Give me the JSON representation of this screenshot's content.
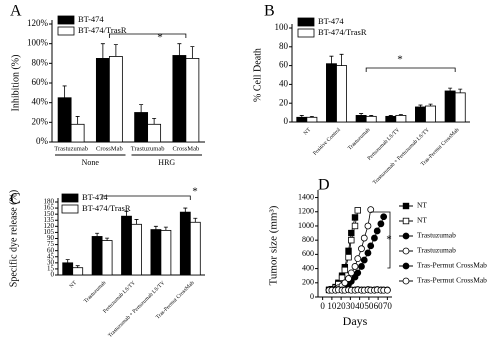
{
  "chart_data": [
    {
      "type": "bar",
      "label": "A",
      "ylabel": "Inhibition (%)",
      "categories": [
        "Trastuzumab",
        "CrossMab",
        "Trastuzumab",
        "CrossMab"
      ],
      "groups": [
        "None",
        "HRG"
      ],
      "series": [
        {
          "name": "BT-474",
          "color": "#000000",
          "values": [
            45,
            85,
            30,
            88
          ],
          "errors": [
            12,
            15,
            8,
            12
          ]
        },
        {
          "name": "BT-474/TrasR",
          "color": "#ffffff",
          "values": [
            18,
            87,
            18,
            85
          ],
          "errors": [
            8,
            12,
            6,
            12
          ]
        }
      ],
      "ylim": [
        0,
        120
      ],
      "yticks": [
        {
          "value": 0,
          "label": "0%"
        },
        {
          "value": 20,
          "label": "20%"
        },
        {
          "value": 40,
          "label": "40%"
        },
        {
          "value": 60,
          "label": "60%"
        },
        {
          "value": 80,
          "label": "80%"
        },
        {
          "value": 100,
          "label": "100%"
        },
        {
          "value": 120,
          "label": "120%"
        }
      ],
      "annotation": "*"
    },
    {
      "type": "bar",
      "label": "B",
      "ylabel": "% Cell Death",
      "categories": [
        "NT",
        "Positive Control",
        "Trastuzumab",
        "Pertuzumab LS/TY",
        "Trastuzumab + Pertuzumab LS/TY",
        "Tras-Permut CrossMab"
      ],
      "series": [
        {
          "name": "BT-474",
          "color": "#000000",
          "values": [
            5,
            62,
            7,
            6,
            16,
            33
          ],
          "errors": [
            2,
            8,
            2,
            1,
            2,
            3
          ]
        },
        {
          "name": "BT-474/TrasR",
          "color": "#ffffff",
          "values": [
            5,
            60,
            6,
            7,
            17,
            31
          ],
          "errors": [
            1,
            12,
            1,
            1,
            2,
            4
          ]
        }
      ],
      "ylim": [
        0,
        100
      ],
      "yticks": [
        0,
        20,
        40,
        60,
        80,
        100
      ],
      "annotation": "*"
    },
    {
      "type": "bar",
      "label": "C",
      "ylabel": "Specific dye release (%)",
      "categories": [
        "NT",
        "Trastuzumab",
        "Pertuzumab LS/TY",
        "Trastuzumab + Pertuzumab LS/TY",
        "Tras-Permut CrossMab"
      ],
      "series": [
        {
          "name": "BT-474",
          "color": "#000000",
          "values": [
            30,
            95,
            145,
            112,
            155
          ],
          "errors": [
            8,
            8,
            12,
            8,
            10
          ]
        },
        {
          "name": "BT-474/TrasR",
          "color": "#ffffff",
          "values": [
            18,
            85,
            125,
            110,
            130
          ],
          "errors": [
            5,
            6,
            12,
            8,
            10
          ]
        }
      ],
      "ylim": [
        0,
        180
      ],
      "yticks": [
        0,
        15,
        30,
        45,
        60,
        75,
        90,
        105,
        120,
        135,
        150,
        165,
        180
      ],
      "annotation": "*"
    },
    {
      "type": "line",
      "label": "D",
      "xlabel": "Days",
      "ylabel": "Tumor size (mm³)",
      "series": [
        {
          "name": "NT",
          "marker": "square",
          "color": "#000000",
          "x": [
            7,
            10,
            14,
            17,
            21,
            24,
            28,
            31,
            35
          ],
          "values": [
            100,
            110,
            140,
            200,
            300,
            420,
            650,
            900,
            1120
          ]
        },
        {
          "name": "NT",
          "marker": "square",
          "color": "#ffffff",
          "x": [
            7,
            10,
            14,
            17,
            21,
            24,
            28,
            31,
            35,
            38
          ],
          "values": [
            100,
            110,
            130,
            180,
            270,
            380,
            560,
            800,
            1000,
            1220
          ]
        },
        {
          "name": "Trastuzumab",
          "marker": "circle",
          "color": "#000000",
          "x": [
            7,
            10,
            14,
            17,
            21,
            24,
            28,
            31,
            35,
            38,
            42,
            45,
            49,
            52,
            56,
            59,
            63,
            66
          ],
          "values": [
            100,
            100,
            105,
            110,
            130,
            150,
            180,
            220,
            280,
            340,
            430,
            520,
            620,
            720,
            830,
            930,
            1030,
            1130
          ]
        },
        {
          "name": "Trastuzumab",
          "marker": "circle",
          "color": "#ffffff",
          "x": [
            7,
            10,
            14,
            17,
            21,
            24,
            28,
            31,
            35,
            38,
            42,
            45,
            49,
            52
          ],
          "values": [
            100,
            105,
            110,
            130,
            160,
            200,
            260,
            340,
            430,
            540,
            680,
            830,
            1000,
            1230
          ]
        },
        {
          "name": "Tras-Permut CrossMab",
          "marker": "circle",
          "color": "#000000",
          "x": [
            7,
            10,
            14,
            17,
            21,
            24,
            28,
            31,
            35,
            38,
            42,
            45,
            49,
            52,
            56,
            59,
            63,
            66,
            70
          ],
          "values": [
            100,
            100,
            100,
            105,
            100,
            100,
            105,
            100,
            100,
            105,
            100,
            100,
            105,
            100,
            100,
            105,
            100,
            100,
            100
          ]
        },
        {
          "name": "Tras-Permut CrossMab",
          "marker": "circle",
          "color": "#ffffff",
          "x": [
            7,
            10,
            14,
            17,
            21,
            24,
            28,
            31,
            35,
            38,
            42,
            45,
            49,
            52,
            56,
            59,
            63,
            66,
            70
          ],
          "values": [
            95,
            95,
            95,
            100,
            95,
            95,
            100,
            95,
            95,
            100,
            95,
            95,
            100,
            95,
            95,
            100,
            95,
            95,
            95
          ]
        }
      ],
      "xlim": [
        -5,
        75
      ],
      "xticks": [
        0,
        10,
        20,
        30,
        40,
        50,
        60,
        70
      ],
      "ylim": [
        0,
        1450
      ],
      "yticks": [
        0,
        200,
        400,
        600,
        800,
        1000,
        1200,
        1400
      ],
      "annotation": "*"
    }
  ]
}
